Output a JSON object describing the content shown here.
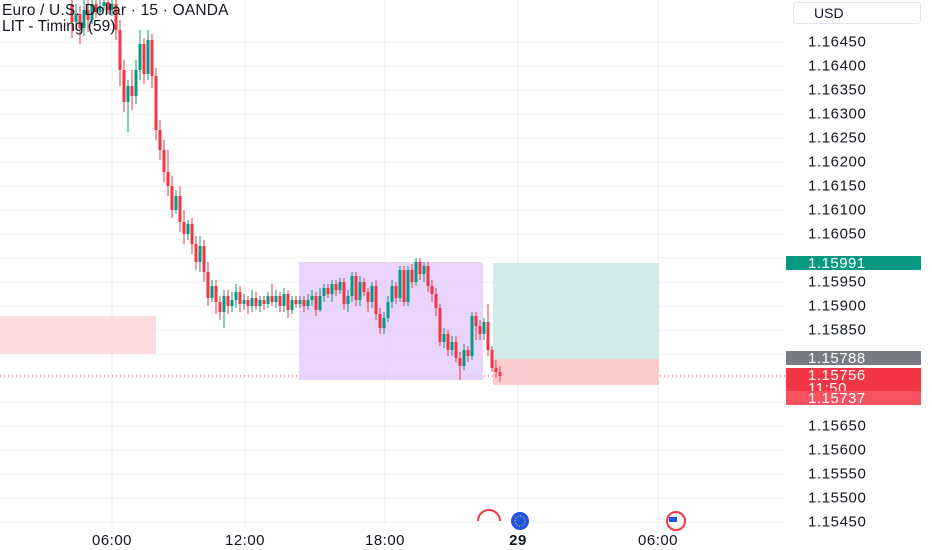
{
  "header": {
    "symbol_title": "Euro / U.S. Dollar · 15 · OANDA",
    "indicator": "LIT - Timing (59)",
    "currency": "USD"
  },
  "price_axis": {
    "labels": [
      "1.16450",
      "1.16400",
      "1.16350",
      "1.16300",
      "1.16250",
      "1.16200",
      "1.16150",
      "1.16100",
      "1.16050",
      "1.15950",
      "1.15900",
      "1.15850",
      "1.15650",
      "1.15600",
      "1.15550",
      "1.15500",
      "1.15450"
    ],
    "price_tags": [
      {
        "text": "1.15991",
        "color": "#089981"
      },
      {
        "text": "1.15788",
        "color": "#787b86"
      },
      {
        "text": "1.15756",
        "color": "#f23645"
      },
      {
        "text": "11:50",
        "color": "#f23645"
      },
      {
        "text": "1.15737",
        "color": "#f7525f"
      }
    ]
  },
  "time_axis": {
    "labels": [
      {
        "text": "06:00",
        "bold": false
      },
      {
        "text": "12:00",
        "bold": false
      },
      {
        "text": "18:00",
        "bold": false
      },
      {
        "text": "29",
        "bold": true
      },
      {
        "text": "06:00",
        "bold": false
      }
    ]
  },
  "colors": {
    "up": "#089981",
    "down": "#f23645",
    "grid": "#f0f3fa",
    "range_box": "#e1c6fb",
    "supply_zone": "#fbd5d7",
    "target_zone": "#cce9e5",
    "stop_zone": "#f9c6c9"
  }
}
